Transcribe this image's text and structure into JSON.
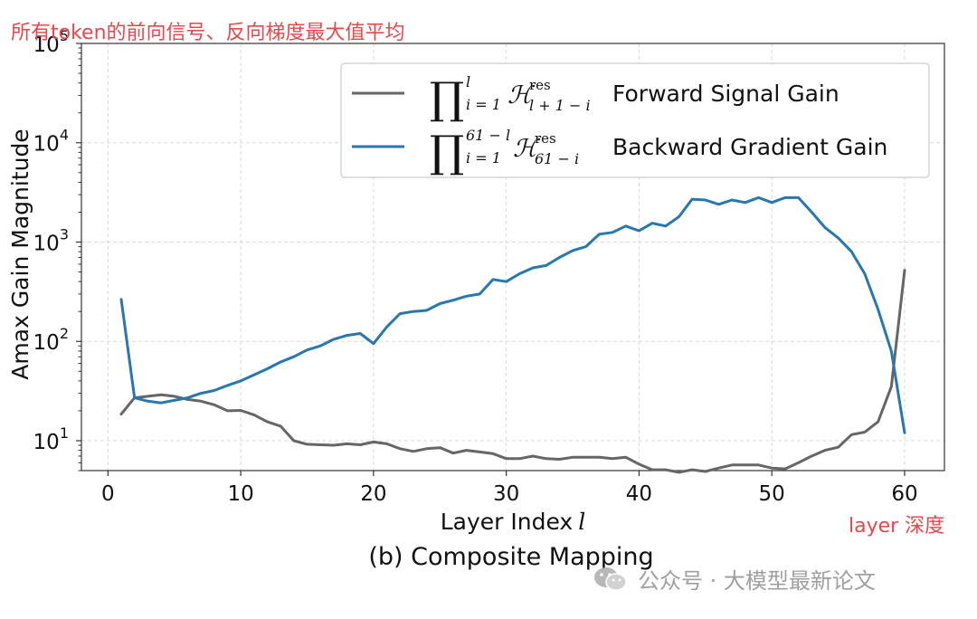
{
  "annotations": {
    "top": "所有token的前向信号、反向梯度最大值平均",
    "right": "layer 深度"
  },
  "caption": "(b) Composite Mapping",
  "watermark": {
    "icon": "wechat-icon",
    "text": "公众号 · 大模型最新论文"
  },
  "chart_data": {
    "type": "line",
    "xlabel": "Layer Index",
    "xlabel_symbol": "l",
    "ylabel": "Amax Gain Magnitude",
    "xlim": [
      -2,
      63
    ],
    "ylim": [
      5,
      100000
    ],
    "yscale": "log",
    "xticks": [
      0,
      10,
      20,
      30,
      40,
      50,
      60
    ],
    "xtick_labels": [
      "0",
      "10",
      "20",
      "30",
      "40",
      "50",
      "60"
    ],
    "yticks": [
      10,
      100,
      1000,
      10000,
      100000
    ],
    "ytick_labels": [
      {
        "base": "10",
        "exp": "1"
      },
      {
        "base": "10",
        "exp": "2"
      },
      {
        "base": "10",
        "exp": "3"
      },
      {
        "base": "10",
        "exp": "4"
      },
      {
        "base": "10",
        "exp": "5"
      }
    ],
    "grid": true,
    "legend_position": "top-right",
    "series": [
      {
        "name": "Forward Signal Gain",
        "color": "#666666",
        "math": {
          "op": "∏",
          "sup": "l",
          "sub": "i = 1",
          "H": "ℋ",
          "Hsup": "res",
          "Hsub": "l + 1 − i"
        },
        "x": [
          1,
          2,
          3,
          4,
          5,
          6,
          7,
          8,
          9,
          10,
          11,
          12,
          13,
          14,
          15,
          16,
          17,
          18,
          19,
          20,
          21,
          22,
          23,
          24,
          25,
          26,
          27,
          28,
          29,
          30,
          31,
          32,
          33,
          34,
          35,
          36,
          37,
          38,
          39,
          40,
          41,
          42,
          43,
          44,
          45,
          46,
          47,
          48,
          49,
          50,
          51,
          52,
          53,
          54,
          55,
          56,
          57,
          58,
          59,
          60
        ],
        "y": [
          18.5,
          27,
          28,
          29,
          28,
          26,
          25,
          23,
          20,
          20.2,
          18.2,
          15.5,
          14,
          10,
          9.2,
          9.1,
          9,
          9.3,
          9.1,
          9.7,
          9.3,
          8.3,
          7.8,
          8.3,
          8.5,
          7.5,
          8,
          7.7,
          7.4,
          6.6,
          6.6,
          7.0,
          6.6,
          6.5,
          6.8,
          6.8,
          6.8,
          6.6,
          6.8,
          5.8,
          5.1,
          5.1,
          4.8,
          5.1,
          4.9,
          5.3,
          5.7,
          5.7,
          5.7,
          5.3,
          5.2,
          6.0,
          7.0,
          8.0,
          8.6,
          11.5,
          12.2,
          15.5,
          35,
          520
        ]
      },
      {
        "name": "Backward Gradient Gain",
        "color": "#2877b0",
        "math": {
          "op": "∏",
          "sup": "61 − l",
          "sub": "i = 1",
          "H": "ℋ",
          "Hsup": "res",
          "Hsub": "61 − i"
        },
        "x": [
          1,
          2,
          3,
          4,
          5,
          6,
          7,
          8,
          9,
          10,
          11,
          12,
          13,
          14,
          15,
          16,
          17,
          18,
          19,
          20,
          21,
          22,
          23,
          24,
          25,
          26,
          27,
          28,
          29,
          30,
          31,
          32,
          33,
          34,
          35,
          36,
          37,
          38,
          39,
          40,
          41,
          42,
          43,
          44,
          45,
          46,
          47,
          48,
          49,
          50,
          51,
          52,
          53,
          54,
          55,
          56,
          57,
          58,
          59,
          60
        ],
        "y": [
          265,
          27,
          25,
          24,
          25.5,
          27,
          30,
          32,
          36,
          40,
          46,
          53,
          62,
          70,
          82,
          90,
          105,
          115,
          120,
          95,
          140,
          190,
          200,
          205,
          240,
          260,
          285,
          300,
          420,
          400,
          480,
          550,
          580,
          700,
          820,
          900,
          1200,
          1250,
          1450,
          1300,
          1550,
          1450,
          1800,
          2700,
          2650,
          2400,
          2650,
          2500,
          2800,
          2500,
          2800,
          2800,
          2000,
          1400,
          1100,
          800,
          480,
          210,
          80,
          12
        ]
      }
    ]
  }
}
